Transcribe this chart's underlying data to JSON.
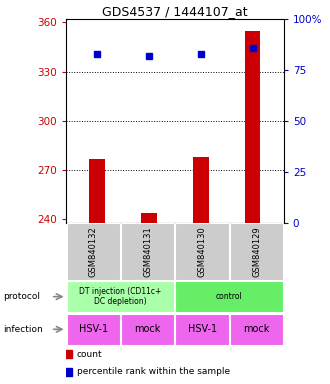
{
  "title": "GDS4537 / 1444107_at",
  "samples": [
    "GSM840132",
    "GSM840131",
    "GSM840130",
    "GSM840129"
  ],
  "bar_values": [
    277,
    244,
    278,
    355
  ],
  "percentile_values": [
    83,
    82,
    83,
    86
  ],
  "ylim_left": [
    238,
    362
  ],
  "ylim_right": [
    0,
    100
  ],
  "yticks_left": [
    240,
    270,
    300,
    330,
    360
  ],
  "yticks_right": [
    0,
    25,
    50,
    75,
    100
  ],
  "ytick_labels_right": [
    "0",
    "25",
    "50",
    "75",
    "100%"
  ],
  "bar_color": "#cc0000",
  "dot_color": "#0000cc",
  "protocol_labels": [
    "DT injection (CD11c+\nDC depletion)",
    "control"
  ],
  "protocol_colors": [
    "#aaffaa",
    "#66ee66"
  ],
  "infection_labels": [
    "HSV-1",
    "mock",
    "HSV-1",
    "mock"
  ],
  "infection_color": "#ee66ee",
  "sample_bg_color": "#cccccc",
  "bar_width": 0.3,
  "x_positions": [
    1,
    2,
    3,
    4
  ],
  "grid_ticks": [
    270,
    300,
    330
  ]
}
